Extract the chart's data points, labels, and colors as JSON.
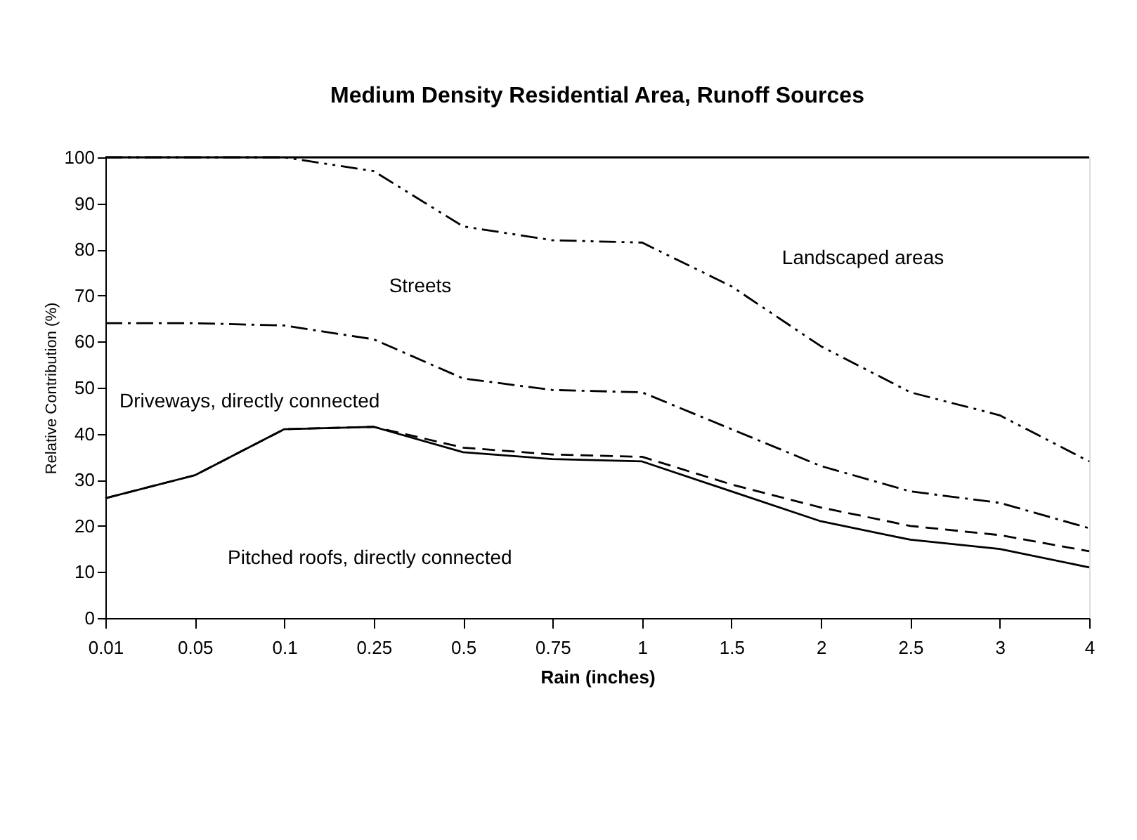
{
  "chart_data": {
    "type": "line",
    "title": "Medium Density Residential Area, Runoff Sources",
    "xlabel": "Rain (inches)",
    "ylabel": "Relative Contribution (%)",
    "categories": [
      "0.01",
      "0.05",
      "0.1",
      "0.25",
      "0.5",
      "0.75",
      "1",
      "1.5",
      "2",
      "2.5",
      "3",
      "4"
    ],
    "series": [
      {
        "color": "#000000",
        "line_style": "solid",
        "values": [
          26,
          31,
          41,
          41.5,
          36,
          34.5,
          34,
          27.5,
          21,
          17,
          15,
          11
        ]
      },
      {
        "color": "#000000",
        "line_style": "dashed",
        "values": [
          26,
          31,
          41,
          41.5,
          37,
          35.5,
          35,
          29,
          24,
          20,
          18,
          14.5
        ]
      },
      {
        "color": "#000000",
        "line_style": "dashdot",
        "values": [
          64,
          64,
          63.5,
          60.5,
          52,
          49.5,
          49,
          41,
          33,
          27.5,
          25,
          19.5
        ]
      },
      {
        "color": "#000000",
        "line_style": "dashdotdot",
        "values": [
          100,
          100,
          100,
          97,
          85,
          82,
          81.5,
          72,
          59,
          49,
          44,
          34
        ]
      }
    ],
    "ylim": [
      0,
      100
    ],
    "yticks": [
      0,
      10,
      20,
      30,
      40,
      50,
      60,
      70,
      80,
      90,
      100
    ],
    "grid": false,
    "marker": "none",
    "ref_lines": [
      {
        "axis": "y",
        "value": 100,
        "color": "#000000"
      }
    ],
    "annotations": [
      "Landscaped areas",
      "Streets",
      "Driveways, directly connected",
      "Pitched roofs, directly connected"
    ]
  }
}
